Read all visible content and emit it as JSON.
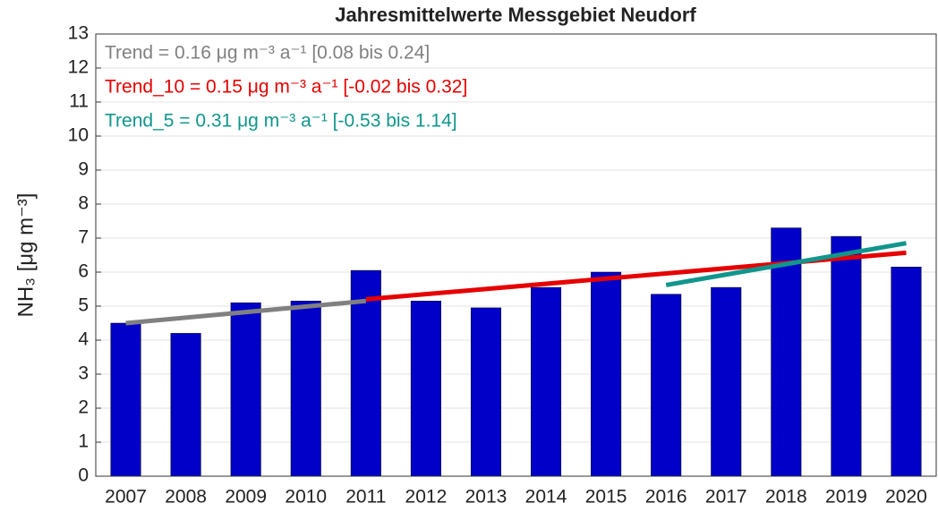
{
  "chart_data": {
    "type": "bar",
    "title": "Jahresmittelwerte Messgebiet Neudorf",
    "y_label": "NH₃ [μg m⁻³]",
    "categories": [
      "2007",
      "2008",
      "2009",
      "2010",
      "2011",
      "2012",
      "2013",
      "2014",
      "2015",
      "2016",
      "2017",
      "2018",
      "2019",
      "2020"
    ],
    "values": [
      4.5,
      4.2,
      5.1,
      5.15,
      6.05,
      5.15,
      4.95,
      5.55,
      6.0,
      5.35,
      5.55,
      7.3,
      7.05,
      6.15
    ],
    "color": "#0000c8",
    "ylim": [
      0,
      13
    ],
    "yticks": [
      0,
      1,
      2,
      3,
      4,
      5,
      6,
      7,
      8,
      9,
      10,
      11,
      12,
      13
    ],
    "grid": true,
    "trend_lines": [
      {
        "label": "Trend = 0.16 μg m⁻³ a⁻¹ [0.08 bis 0.24]",
        "color": "#808080",
        "x": [
          "2007",
          "2011"
        ],
        "values": [
          4.5,
          5.15
        ]
      },
      {
        "label": "Trend_10 = 0.15 μg m⁻³ a⁻¹ [-0.02 bis 0.32]",
        "color": "#e60000",
        "x": [
          "2011",
          "2020"
        ],
        "values": [
          5.2,
          6.57
        ]
      },
      {
        "label": "Trend_5 = 0.31 μg m⁻³ a⁻¹ [-0.53 bis 1.14]",
        "color": "#10968c",
        "x": [
          "2016",
          "2020"
        ],
        "values": [
          5.62,
          6.85
        ]
      }
    ]
  }
}
